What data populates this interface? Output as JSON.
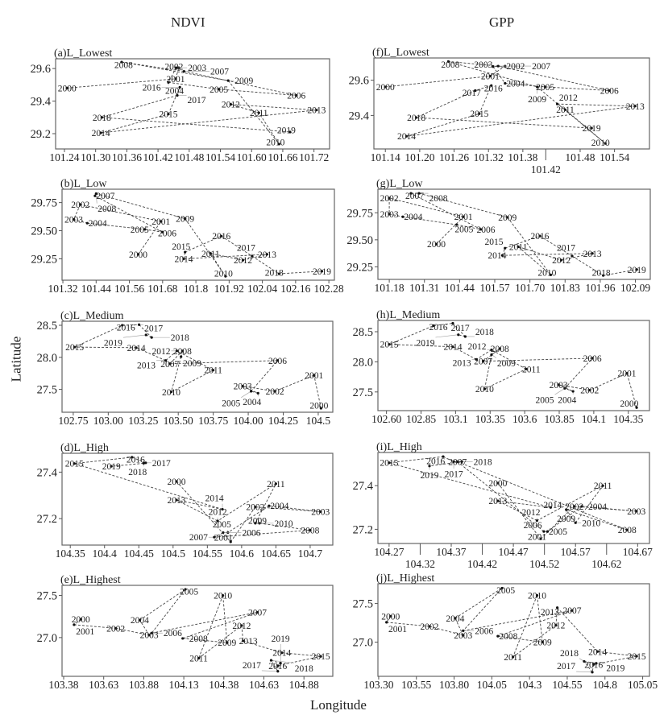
{
  "headers": {
    "ndvi": "NDVI",
    "gpp": "GPP",
    "ylabel": "Latitude",
    "xlabel": "Longitude"
  },
  "chart_data": [
    {
      "id": "a",
      "type": "line",
      "title": "(a)L_Lowest",
      "xlim": [
        101.223,
        101.75
      ],
      "ylim": [
        29.106,
        29.66
      ],
      "xticks": [
        "101.24",
        "101.30",
        "101.36",
        "101.42",
        "101.48",
        "101.54",
        "101.60",
        "101.66",
        "101.72"
      ],
      "yticks": [
        "29.2",
        "29.4",
        "29.6"
      ],
      "years": [
        2000,
        2001,
        2002,
        2003,
        2004,
        2005,
        2006,
        2007,
        2008,
        2009,
        2010,
        2011,
        2012,
        2013,
        2014,
        2015,
        2016,
        2017,
        2018,
        2019
      ],
      "lon": [
        101.245,
        101.454,
        101.46,
        101.455,
        101.44,
        101.537,
        101.686,
        101.47,
        101.35,
        101.555,
        101.653,
        101.614,
        101.56,
        101.725,
        101.31,
        101.44,
        101.462,
        101.457,
        101.312,
        101.674
      ],
      "lat": [
        29.48,
        29.537,
        29.605,
        29.605,
        29.515,
        29.473,
        29.435,
        29.583,
        29.64,
        29.526,
        29.136,
        29.328,
        29.38,
        29.345,
        29.205,
        29.32,
        29.485,
        29.435,
        29.3,
        29.21
      ]
    },
    {
      "id": "b",
      "type": "line",
      "title": "(b)L_Low",
      "xlim": [
        101.317,
        102.3
      ],
      "ylim": [
        29.06,
        29.869
      ],
      "xticks": [
        "101.32",
        "101.44",
        "101.56",
        "101.68",
        "101.8",
        "101.92",
        "102.04",
        "102.16",
        "102.28"
      ],
      "yticks": [
        "29.25",
        "29.50",
        "29.75"
      ],
      "years": [
        2000,
        2001,
        2002,
        2003,
        2004,
        2005,
        2006,
        2007,
        2008,
        2009,
        2010,
        2011,
        2012,
        2013,
        2014,
        2015,
        2016,
        2017,
        2018,
        2019
      ],
      "lon": [
        101.592,
        101.674,
        101.383,
        101.359,
        101.408,
        101.616,
        101.679,
        101.436,
        101.44,
        101.761,
        101.907,
        101.853,
        101.97,
        102.057,
        101.756,
        101.761,
        101.892,
        102.003,
        102.1,
        102.255
      ],
      "lat": [
        29.29,
        29.583,
        29.733,
        29.6,
        29.567,
        29.512,
        29.488,
        29.81,
        29.83,
        29.607,
        29.095,
        29.298,
        29.238,
        29.29,
        29.25,
        29.31,
        29.452,
        29.274,
        29.117,
        29.14
      ]
    },
    {
      "id": "c",
      "type": "line",
      "title": "(c)L_Medium",
      "xlim": [
        102.67,
        104.604
      ],
      "ylim": [
        27.143,
        28.563
      ],
      "xticks": [
        "102.75",
        "103.00",
        "103.25",
        "103.50",
        "103.75",
        "104.00",
        "104.25",
        "104.5"
      ],
      "yticks": [
        "27.5",
        "28.0",
        "28.5"
      ],
      "years": [
        2000,
        2001,
        2002,
        2003,
        2004,
        2005,
        2006,
        2007,
        2008,
        2009,
        2010,
        2011,
        2012,
        2013,
        2014,
        2015,
        2016,
        2017,
        2018,
        2019
      ],
      "lon": [
        104.52,
        104.47,
        104.19,
        103.96,
        104.07,
        104.02,
        104.21,
        103.44,
        103.53,
        103.52,
        103.45,
        103.75,
        103.49,
        103.41,
        103.2,
        102.76,
        103.1,
        103.22,
        103.31,
        103.27
      ],
      "lat": [
        27.205,
        27.72,
        27.47,
        27.55,
        27.44,
        27.47,
        27.95,
        27.9,
        28.1,
        28.01,
        27.46,
        27.8,
        28.1,
        27.95,
        28.15,
        28.16,
        28.5,
        28.51,
        28.31,
        28.35
      ]
    },
    {
      "id": "d",
      "type": "line",
      "title": "(d)L_High",
      "xlim": [
        104.338,
        104.733
      ],
      "ylim": [
        27.086,
        27.481
      ],
      "xticks": [
        "104.35",
        "104.4",
        "104.45",
        "104.5",
        "104.55",
        "104.6",
        "104.65",
        "104.7"
      ],
      "yticks": [
        "27.2",
        "27.4"
      ],
      "years": [
        2000,
        2001,
        2002,
        2003,
        2004,
        2005,
        2006,
        2007,
        2008,
        2009,
        2010,
        2011,
        2012,
        2013,
        2014,
        2015,
        2016,
        2017,
        2018,
        2019
      ],
      "lon": [
        104.505,
        104.584,
        104.62,
        104.715,
        104.64,
        104.58,
        104.573,
        104.56,
        104.7,
        104.626,
        104.62,
        104.65,
        104.565,
        104.505,
        104.572,
        104.356,
        104.44,
        104.46,
        104.457,
        104.41
      ],
      "lat": [
        27.36,
        27.1,
        27.25,
        27.23,
        27.255,
        27.14,
        27.14,
        27.12,
        27.15,
        27.18,
        27.18,
        27.35,
        27.19,
        27.28,
        27.24,
        27.437,
        27.464,
        27.44,
        27.438,
        27.425
      ]
    },
    {
      "id": "e",
      "type": "line",
      "title": "(e)L_Highest",
      "xlim": [
        103.37,
        105.06
      ],
      "ylim": [
        26.54,
        27.62
      ],
      "xticks": [
        "103.38",
        "103.63",
        "103.88",
        "104.13",
        "104.38",
        "104.63",
        "104.88"
      ],
      "yticks": [
        "27.0",
        "27.5"
      ],
      "years": [
        2000,
        2001,
        2002,
        2003,
        2004,
        2005,
        2006,
        2007,
        2008,
        2009,
        2010,
        2011,
        2012,
        2013,
        2014,
        2015,
        2016,
        2017,
        2018,
        2019
      ],
      "lon": [
        103.487,
        103.445,
        103.705,
        103.914,
        103.855,
        104.14,
        103.93,
        104.59,
        104.123,
        104.4,
        104.374,
        104.223,
        104.491,
        104.5,
        104.742,
        104.985,
        104.717,
        104.717,
        104.675,
        104.734
      ],
      "lat": [
        27.217,
        27.153,
        27.11,
        27.03,
        27.207,
        27.573,
        27.054,
        27.3,
        26.99,
        26.94,
        27.5,
        26.755,
        27.143,
        26.96,
        26.82,
        26.777,
        26.666,
        26.6,
        26.73,
        26.697
      ]
    },
    {
      "id": "f",
      "type": "line",
      "title": "(f)L_Lowest",
      "xlim": [
        101.12,
        101.601
      ],
      "ylim": [
        29.21,
        29.726
      ],
      "xticks": [
        "101.14",
        "101.20",
        "101.26",
        "101.32",
        "101.38",
        "101.42",
        "101.48",
        "101.54"
      ],
      "yticks": [
        "29.4",
        "29.6"
      ],
      "years": [
        2000,
        2001,
        2002,
        2003,
        2004,
        2005,
        2006,
        2007,
        2008,
        2009,
        2010,
        2011,
        2012,
        2013,
        2014,
        2015,
        2016,
        2017,
        2018,
        2019
      ],
      "lon": [
        101.14,
        101.323,
        101.349,
        101.328,
        101.349,
        101.419,
        101.531,
        101.337,
        101.25,
        101.405,
        101.524,
        101.454,
        101.44,
        101.576,
        101.177,
        101.304,
        101.325,
        101.297,
        101.194,
        101.5
      ],
      "lat": [
        29.562,
        29.623,
        29.68,
        29.677,
        29.582,
        29.562,
        29.541,
        29.68,
        29.706,
        29.562,
        29.241,
        29.433,
        29.465,
        29.453,
        29.282,
        29.41,
        29.57,
        29.541,
        29.388,
        29.328
      ]
    },
    {
      "id": "g",
      "type": "line",
      "title": "(g)L_Low",
      "xlim": [
        101.138,
        102.145
      ],
      "ylim": [
        29.134,
        29.968
      ],
      "xticks": [
        "101.18",
        "101.31",
        "101.44",
        "101.57",
        "101.70",
        "101.83",
        "101.96",
        "102.09"
      ],
      "yticks": [
        "29.25",
        "29.50",
        "29.75"
      ],
      "years": [
        2000,
        2001,
        2002,
        2003,
        2004,
        2005,
        2006,
        2007,
        2008,
        2009,
        2010,
        2011,
        2012,
        2013,
        2014,
        2015,
        2016,
        2017,
        2018,
        2019
      ],
      "lon": [
        101.354,
        101.454,
        101.18,
        101.18,
        101.23,
        101.429,
        101.518,
        101.26,
        101.29,
        101.617,
        101.777,
        101.657,
        101.816,
        101.931,
        101.598,
        101.608,
        101.737,
        101.856,
        101.971,
        102.095
      ],
      "lat": [
        29.46,
        29.713,
        29.886,
        29.738,
        29.713,
        29.64,
        29.597,
        29.93,
        29.93,
        29.708,
        29.176,
        29.436,
        29.312,
        29.374,
        29.356,
        29.423,
        29.535,
        29.35,
        29.17,
        29.225
      ]
    },
    {
      "id": "h",
      "type": "line",
      "title": "(h)L_Medium",
      "xlim": [
        102.538,
        104.503
      ],
      "ylim": [
        27.19,
        28.687
      ],
      "xticks": [
        "102.60",
        "102.85",
        "103.1",
        "103.35",
        "103.6",
        "103.85",
        "104.1",
        "104.35"
      ],
      "yticks": [
        "27.5",
        "28.0",
        "28.5"
      ],
      "years": [
        2000,
        2001,
        2002,
        2003,
        2004,
        2005,
        2006,
        2007,
        2008,
        2009,
        2010,
        2011,
        2012,
        2013,
        2014,
        2015,
        2016,
        2017,
        2018,
        2019
      ],
      "lon": [
        104.41,
        104.34,
        104.07,
        103.845,
        103.95,
        103.89,
        104.09,
        103.3,
        103.42,
        103.36,
        103.31,
        103.61,
        103.36,
        103.25,
        103.08,
        102.62,
        102.94,
        103.08,
        103.17,
        103.12
      ],
      "lat": [
        27.24,
        27.81,
        27.53,
        27.62,
        27.51,
        27.56,
        28.06,
        28.01,
        28.22,
        28.12,
        27.55,
        27.88,
        28.2,
        28.04,
        28.25,
        28.29,
        28.6,
        28.64,
        28.42,
        28.45
      ]
    },
    {
      "id": "i",
      "type": "line",
      "title": "(i)L_High",
      "xlim": [
        104.252,
        104.689
      ],
      "ylim": [
        27.135,
        27.552
      ],
      "xticks": [
        "104.27",
        "104.32",
        "104.37",
        "104.42",
        "104.47",
        "104.52",
        "104.57",
        "104.62",
        "104.67"
      ],
      "yticks": [
        "27.2",
        "27.4"
      ],
      "years": [
        2000,
        2001,
        2002,
        2003,
        2004,
        2005,
        2006,
        2007,
        2008,
        2009,
        2010,
        2011,
        2012,
        2013,
        2014,
        2015,
        2016,
        2017,
        2018,
        2019
      ],
      "lon": [
        104.445,
        104.514,
        104.568,
        104.668,
        104.58,
        104.525,
        104.519,
        104.38,
        104.653,
        104.555,
        104.57,
        104.614,
        104.508,
        104.445,
        104.53,
        104.27,
        104.357,
        104.374,
        104.387,
        104.335
      ],
      "lat": [
        27.412,
        27.156,
        27.305,
        27.283,
        27.305,
        27.19,
        27.19,
        27.51,
        27.197,
        27.29,
        27.23,
        27.4,
        27.24,
        27.33,
        27.3,
        27.505,
        27.533,
        27.51,
        27.51,
        27.49
      ]
    },
    {
      "id": "j",
      "type": "line",
      "title": "(j)L_Highest",
      "xlim": [
        103.295,
        105.095
      ],
      "ylim": [
        26.556,
        27.757
      ],
      "xticks": [
        "103.30",
        "103.55",
        "103.80",
        "104.05",
        "104.3",
        "104.55",
        "104.8",
        "105.05"
      ],
      "yticks": [
        "27.0",
        "27.5"
      ],
      "years": [
        2000,
        2001,
        2002,
        2003,
        2004,
        2005,
        2006,
        2007,
        2008,
        2009,
        2010,
        2011,
        2012,
        2013,
        2014,
        2015,
        2016,
        2017,
        2018,
        2019
      ],
      "lon": [
        103.379,
        103.352,
        103.637,
        103.86,
        103.807,
        104.118,
        103.86,
        104.582,
        104.09,
        104.386,
        104.35,
        104.19,
        104.475,
        104.484,
        104.751,
        105.01,
        104.725,
        104.716,
        104.662,
        104.742
      ],
      "lat": [
        27.335,
        27.257,
        27.204,
        27.088,
        27.31,
        27.7,
        27.148,
        27.41,
        27.077,
        27.0,
        27.606,
        26.806,
        27.218,
        27.447,
        26.877,
        26.817,
        26.71,
        26.61,
        26.75,
        26.725
      ]
    }
  ]
}
